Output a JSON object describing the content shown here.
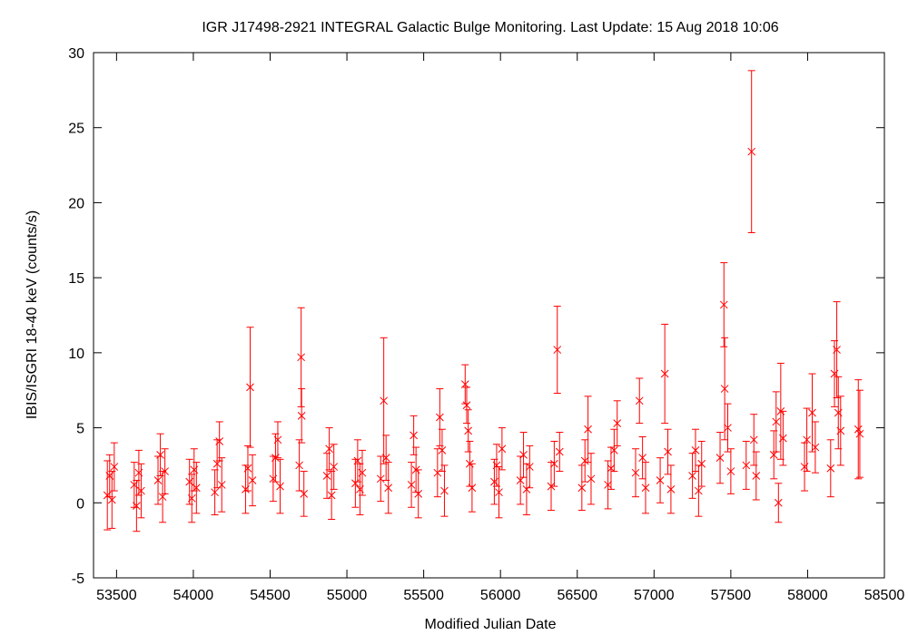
{
  "chart_data": {
    "type": "scatter",
    "title": "IGR J17498-2921   INTEGRAL Galactic Bulge Monitoring.  Last Update: 15 Aug 2018 10:06",
    "xlabel": "Modified Julian Date",
    "ylabel": "IBIS/ISGRI 18-40 keV (counts/s)",
    "xlim": [
      53350,
      58500
    ],
    "ylim": [
      -5,
      30
    ],
    "xticks": [
      "53500",
      "54000",
      "54500",
      "55000",
      "55500",
      "56000",
      "56500",
      "57000",
      "57500",
      "58000",
      "58500"
    ],
    "yticks": [
      "-5",
      "0",
      "5",
      "10",
      "15",
      "20",
      "25",
      "30"
    ],
    "grid": false,
    "legend": "none",
    "marker": "x",
    "error_bars": true,
    "color": "#ff0000",
    "points": [
      {
        "x": 53440,
        "y": 0.5,
        "err": 2.3
      },
      {
        "x": 53455,
        "y": 1.8,
        "err": 1.4
      },
      {
        "x": 53470,
        "y": 0.2,
        "err": 1.9
      },
      {
        "x": 53485,
        "y": 2.4,
        "err": 1.6
      },
      {
        "x": 53615,
        "y": 1.2,
        "err": 1.5
      },
      {
        "x": 53630,
        "y": -0.2,
        "err": 1.7
      },
      {
        "x": 53645,
        "y": 2.0,
        "err": 1.5
      },
      {
        "x": 53660,
        "y": 0.8,
        "err": 1.8
      },
      {
        "x": 53770,
        "y": 1.5,
        "err": 1.6
      },
      {
        "x": 53785,
        "y": 3.2,
        "err": 1.4
      },
      {
        "x": 53800,
        "y": 0.4,
        "err": 1.7
      },
      {
        "x": 53815,
        "y": 2.1,
        "err": 1.5
      },
      {
        "x": 53975,
        "y": 1.4,
        "err": 1.5
      },
      {
        "x": 53990,
        "y": 0.3,
        "err": 1.6
      },
      {
        "x": 54005,
        "y": 2.2,
        "err": 1.4
      },
      {
        "x": 54020,
        "y": 1.0,
        "err": 1.7
      },
      {
        "x": 54140,
        "y": 0.7,
        "err": 1.5
      },
      {
        "x": 54155,
        "y": 2.6,
        "err": 1.6
      },
      {
        "x": 54170,
        "y": 4.1,
        "err": 1.3
      },
      {
        "x": 54185,
        "y": 1.2,
        "err": 1.8
      },
      {
        "x": 54340,
        "y": 0.9,
        "err": 1.6
      },
      {
        "x": 54355,
        "y": 2.3,
        "err": 1.5
      },
      {
        "x": 54370,
        "y": 7.7,
        "err": 4.0
      },
      {
        "x": 54385,
        "y": 1.5,
        "err": 1.7
      },
      {
        "x": 54520,
        "y": 1.6,
        "err": 1.5
      },
      {
        "x": 54535,
        "y": 3.0,
        "err": 1.6
      },
      {
        "x": 54550,
        "y": 4.2,
        "err": 1.2
      },
      {
        "x": 54565,
        "y": 1.1,
        "err": 1.8
      },
      {
        "x": 54690,
        "y": 2.5,
        "err": 1.7
      },
      {
        "x": 54702,
        "y": 9.7,
        "err": 3.3
      },
      {
        "x": 54705,
        "y": 5.8,
        "err": 1.8
      },
      {
        "x": 54720,
        "y": 0.6,
        "err": 1.5
      },
      {
        "x": 54870,
        "y": 1.8,
        "err": 1.5
      },
      {
        "x": 54885,
        "y": 3.6,
        "err": 1.4
      },
      {
        "x": 54900,
        "y": 0.5,
        "err": 1.6
      },
      {
        "x": 54915,
        "y": 2.4,
        "err": 1.5
      },
      {
        "x": 55055,
        "y": 1.3,
        "err": 1.6
      },
      {
        "x": 55070,
        "y": 2.8,
        "err": 1.4
      },
      {
        "x": 55085,
        "y": 0.9,
        "err": 1.7
      },
      {
        "x": 55100,
        "y": 2.0,
        "err": 1.5
      },
      {
        "x": 55220,
        "y": 1.6,
        "err": 1.5
      },
      {
        "x": 55240,
        "y": 6.8,
        "err": 4.2
      },
      {
        "x": 55255,
        "y": 3.0,
        "err": 1.5
      },
      {
        "x": 55270,
        "y": 1.0,
        "err": 1.7
      },
      {
        "x": 55420,
        "y": 1.2,
        "err": 1.5
      },
      {
        "x": 55435,
        "y": 4.5,
        "err": 1.3
      },
      {
        "x": 55450,
        "y": 2.2,
        "err": 1.5
      },
      {
        "x": 55465,
        "y": 0.6,
        "err": 1.6
      },
      {
        "x": 55590,
        "y": 2.0,
        "err": 1.6
      },
      {
        "x": 55605,
        "y": 5.7,
        "err": 1.9
      },
      {
        "x": 55620,
        "y": 3.5,
        "err": 1.4
      },
      {
        "x": 55635,
        "y": 0.8,
        "err": 1.7
      },
      {
        "x": 55770,
        "y": 7.9,
        "err": 1.3
      },
      {
        "x": 55780,
        "y": 6.5,
        "err": 1.2
      },
      {
        "x": 55790,
        "y": 4.8,
        "err": 1.4
      },
      {
        "x": 55800,
        "y": 2.6,
        "err": 1.5
      },
      {
        "x": 55815,
        "y": 1.0,
        "err": 1.6
      },
      {
        "x": 55960,
        "y": 1.4,
        "err": 1.5
      },
      {
        "x": 55975,
        "y": 2.5,
        "err": 1.4
      },
      {
        "x": 55990,
        "y": 0.7,
        "err": 1.7
      },
      {
        "x": 56010,
        "y": 3.6,
        "err": 1.4
      },
      {
        "x": 56130,
        "y": 1.5,
        "err": 1.6
      },
      {
        "x": 56150,
        "y": 3.2,
        "err": 1.5
      },
      {
        "x": 56170,
        "y": 0.9,
        "err": 1.7
      },
      {
        "x": 56190,
        "y": 2.4,
        "err": 1.4
      },
      {
        "x": 56330,
        "y": 1.1,
        "err": 1.6
      },
      {
        "x": 56350,
        "y": 2.6,
        "err": 1.5
      },
      {
        "x": 56370,
        "y": 10.2,
        "err": 2.9
      },
      {
        "x": 56385,
        "y": 3.4,
        "err": 1.3
      },
      {
        "x": 56530,
        "y": 1.0,
        "err": 1.5
      },
      {
        "x": 56550,
        "y": 2.8,
        "err": 1.4
      },
      {
        "x": 56570,
        "y": 4.9,
        "err": 2.2
      },
      {
        "x": 56590,
        "y": 1.6,
        "err": 1.7
      },
      {
        "x": 56700,
        "y": 1.2,
        "err": 1.6
      },
      {
        "x": 56720,
        "y": 2.3,
        "err": 1.4
      },
      {
        "x": 56740,
        "y": 3.5,
        "err": 1.4
      },
      {
        "x": 56760,
        "y": 5.3,
        "err": 1.5
      },
      {
        "x": 56880,
        "y": 2.0,
        "err": 1.6
      },
      {
        "x": 56905,
        "y": 6.8,
        "err": 1.5
      },
      {
        "x": 56925,
        "y": 3.0,
        "err": 1.4
      },
      {
        "x": 56945,
        "y": 1.0,
        "err": 1.7
      },
      {
        "x": 57040,
        "y": 1.5,
        "err": 1.5
      },
      {
        "x": 57070,
        "y": 8.6,
        "err": 3.3
      },
      {
        "x": 57090,
        "y": 3.4,
        "err": 1.5
      },
      {
        "x": 57110,
        "y": 0.9,
        "err": 1.6
      },
      {
        "x": 57250,
        "y": 1.8,
        "err": 1.5
      },
      {
        "x": 57270,
        "y": 3.5,
        "err": 1.4
      },
      {
        "x": 57290,
        "y": 0.8,
        "err": 1.7
      },
      {
        "x": 57310,
        "y": 2.6,
        "err": 1.5
      },
      {
        "x": 57430,
        "y": 3.0,
        "err": 1.7
      },
      {
        "x": 57455,
        "y": 13.2,
        "err": 2.8
      },
      {
        "x": 57460,
        "y": 7.6,
        "err": 3.4
      },
      {
        "x": 57480,
        "y": 5.0,
        "err": 1.6
      },
      {
        "x": 57500,
        "y": 2.1,
        "err": 1.5
      },
      {
        "x": 57600,
        "y": 2.5,
        "err": 1.6
      },
      {
        "x": 57635,
        "y": 23.4,
        "err": 5.4
      },
      {
        "x": 57650,
        "y": 4.2,
        "err": 1.7
      },
      {
        "x": 57665,
        "y": 1.8,
        "err": 1.6
      },
      {
        "x": 57780,
        "y": 3.2,
        "err": 1.6
      },
      {
        "x": 57795,
        "y": 5.4,
        "err": 2.0
      },
      {
        "x": 57810,
        "y": 0.0,
        "err": 1.3
      },
      {
        "x": 57825,
        "y": 6.1,
        "err": 3.2
      },
      {
        "x": 57840,
        "y": 4.3,
        "err": 1.8
      },
      {
        "x": 57980,
        "y": 2.4,
        "err": 1.6
      },
      {
        "x": 57995,
        "y": 4.2,
        "err": 2.1
      },
      {
        "x": 58030,
        "y": 6.0,
        "err": 2.6
      },
      {
        "x": 58050,
        "y": 3.7,
        "err": 1.7
      },
      {
        "x": 58150,
        "y": 2.3,
        "err": 1.9
      },
      {
        "x": 58175,
        "y": 8.6,
        "err": 2.2
      },
      {
        "x": 58190,
        "y": 10.2,
        "err": 3.2
      },
      {
        "x": 58200,
        "y": 6.0,
        "err": 2.4
      },
      {
        "x": 58215,
        "y": 4.8,
        "err": 2.3
      },
      {
        "x": 58330,
        "y": 4.9,
        "err": 3.3
      },
      {
        "x": 58340,
        "y": 4.6,
        "err": 2.9
      }
    ]
  }
}
